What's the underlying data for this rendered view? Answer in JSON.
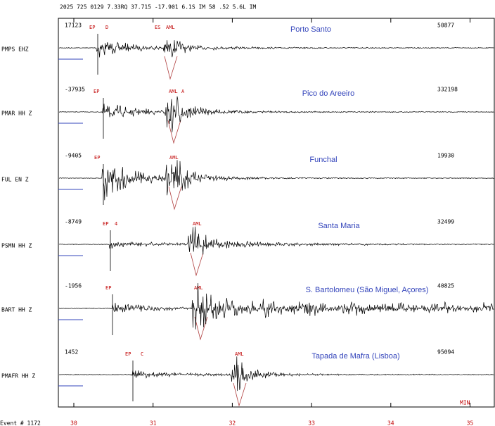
{
  "header": "2025 725 0129  7.33RQ 37.715 -17.901  6.1S  IM 58 .52 5.6L IM",
  "traces": [
    {
      "station": "PMPS EHZ",
      "name": "Porto Santo",
      "min": 17123,
      "max": 50877,
      "phases": [
        "EP",
        "D",
        "ES",
        "AML"
      ]
    },
    {
      "station": "PMAR HH Z",
      "name": "Pico do Areeiro",
      "min": -37935,
      "max": 332198,
      "phases": [
        "EP",
        "AML",
        "A"
      ]
    },
    {
      "station": "FUL EN Z",
      "name": "Funchal",
      "min": -9405,
      "max": 19930,
      "phases": [
        "EP",
        "AML"
      ]
    },
    {
      "station": "PSMN HH Z",
      "name": "Santa Maria",
      "min": -8749,
      "max": 32499,
      "phases": [
        "EP",
        "4",
        "AML"
      ]
    },
    {
      "station": "BART HH Z",
      "name": "S. Bartolomeu (São Miguel, Açores)",
      "min": -1956,
      "max": 40825,
      "phases": [
        "EP",
        "AML"
      ]
    },
    {
      "station": "PMAFR HH Z",
      "name": "Tapada de Mafra (Lisboa)",
      "min": 1452,
      "max": 95094,
      "phases": [
        "EP",
        "C",
        "AML"
      ]
    }
  ],
  "x_axis": [
    30,
    31,
    32,
    33,
    34,
    35
  ],
  "unit": "MIN",
  "footer": "Event # 1172"
}
